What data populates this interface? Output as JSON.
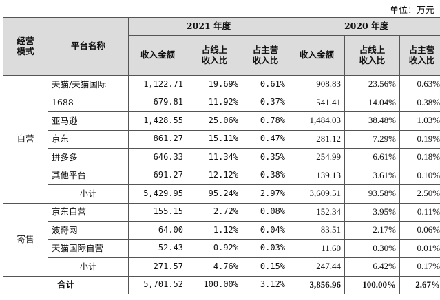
{
  "unit_label": "单位：万元",
  "header": {
    "category": [
      "经营",
      "模式"
    ],
    "platform_name": "平台名称",
    "year_2021": "2021 年度",
    "year_2020": "2020 年度",
    "col_revenue": "收入金额",
    "col_online_share": [
      "占线上",
      "收入比"
    ],
    "col_main_share": [
      "占主营",
      "收入比"
    ]
  },
  "groups": [
    {
      "category": "自营",
      "rows": [
        {
          "platform": "天猫/天猫国际",
          "r2021": "1,122.71",
          "o2021": "19.69%",
          "m2021": "0.61%",
          "r2020": "908.83",
          "o2020": "23.56%",
          "m2020": "0.63%"
        },
        {
          "platform": "1688",
          "r2021": "679.81",
          "o2021": "11.92%",
          "m2021": "0.37%",
          "r2020": "541.41",
          "o2020": "14.04%",
          "m2020": "0.38%"
        },
        {
          "platform": "亚马逊",
          "r2021": "1,428.55",
          "o2021": "25.06%",
          "m2021": "0.78%",
          "r2020": "1,484.03",
          "o2020": "38.48%",
          "m2020": "1.03%"
        },
        {
          "platform": "京东",
          "r2021": "861.27",
          "o2021": "15.11%",
          "m2021": "0.47%",
          "r2020": "281.12",
          "o2020": "7.29%",
          "m2020": "0.19%"
        },
        {
          "platform": "拼多多",
          "r2021": "646.33",
          "o2021": "11.34%",
          "m2021": "0.35%",
          "r2020": "254.99",
          "o2020": "6.61%",
          "m2020": "0.18%"
        },
        {
          "platform": "其他平台",
          "r2021": "691.27",
          "o2021": "12.12%",
          "m2021": "0.38%",
          "r2020": "139.13",
          "o2020": "3.61%",
          "m2020": "0.10%"
        }
      ],
      "subtotal": {
        "label": "小计",
        "r2021": "5,429.95",
        "o2021": "95.24%",
        "m2021": "2.97%",
        "r2020": "3,609.51",
        "o2020": "93.58%",
        "m2020": "2.50%"
      }
    },
    {
      "category": "寄售",
      "rows": [
        {
          "platform": "京东自营",
          "r2021": "155.15",
          "o2021": "2.72%",
          "m2021": "0.08%",
          "r2020": "152.34",
          "o2020": "3.95%",
          "m2020": "0.11%"
        },
        {
          "platform": "波奇网",
          "r2021": "64.00",
          "o2021": "1.12%",
          "m2021": "0.04%",
          "r2020": "83.51",
          "o2020": "2.17%",
          "m2020": "0.06%"
        },
        {
          "platform": "天猫国际自营",
          "r2021": "52.43",
          "o2021": "0.92%",
          "m2021": "0.03%",
          "r2020": "11.60",
          "o2020": "0.30%",
          "m2020": "0.01%"
        }
      ],
      "subtotal": {
        "label": "小计",
        "r2021": "271.57",
        "o2021": "4.76%",
        "m2021": "0.15%",
        "r2020": "247.44",
        "o2020": "6.42%",
        "m2020": "0.17%"
      }
    }
  ],
  "total": {
    "label": "合计",
    "r2021": "5,701.52",
    "o2021": "100.00%",
    "m2021": "3.12%",
    "r2020": "3,856.96",
    "o2020": "100.00%",
    "m2020": "2.67%"
  }
}
